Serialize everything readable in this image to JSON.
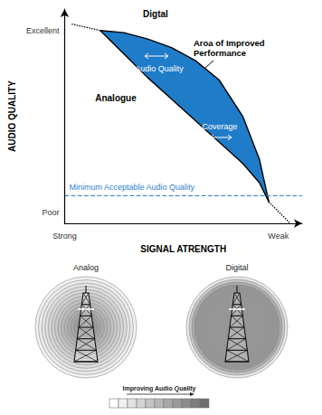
{
  "chart_data": {
    "type": "line",
    "x_label": "SIGNAL ATRENGTH",
    "y_label": "AUDIO QUALITY",
    "xlim": [
      0,
      10
    ],
    "ylim": [
      0,
      10
    ],
    "xticks": [
      {
        "value": 0,
        "label": "Strong"
      },
      {
        "value": 9,
        "label": "Weak"
      }
    ],
    "yticks": [
      {
        "value": 9,
        "label": "Excellent"
      },
      {
        "value": 0.5,
        "label": "Poor"
      }
    ],
    "grid": false,
    "series": [
      {
        "name": "Digtal",
        "color": "#000000",
        "line_style": "solid",
        "x": [
          1.5,
          2.5,
          3.5,
          4.5,
          5.5,
          6.5,
          7.5,
          8.2,
          8.6
        ],
        "values": [
          9.0,
          8.9,
          8.6,
          8.2,
          7.6,
          6.7,
          5.0,
          3.0,
          1.0
        ]
      },
      {
        "name": "Analogue",
        "color": "#000000",
        "line_style": "solid",
        "x": [
          1.5,
          2.5,
          3.5,
          4.5,
          5.5,
          6.5,
          7.5,
          8.2,
          8.6
        ],
        "values": [
          9.0,
          7.9,
          6.8,
          5.8,
          4.8,
          3.8,
          2.8,
          1.9,
          1.0
        ]
      },
      {
        "color": "#000000",
        "line_style": "dotted",
        "x": [
          0.3,
          1.5
        ],
        "values": [
          9.3,
          9.0
        ]
      },
      {
        "color": "#000000",
        "line_style": "dotted",
        "x": [
          8.6,
          9.5
        ],
        "values": [
          1.0,
          0.0
        ]
      }
    ],
    "fill_between": {
      "series": [
        "Digtal",
        "Analogue"
      ],
      "color": "#1f7cc8",
      "label": "Aroa of Improved Performance"
    },
    "threshold": {
      "value": 1.3,
      "label": "Minimum Acceptable Audio Quality",
      "color": "#2f7fd0",
      "line_style": "dashed"
    },
    "annotations": [
      "Audio Quality",
      "Coverage"
    ]
  },
  "diagram": {
    "panels": [
      {
        "label": "Analog"
      },
      {
        "label": "Digital"
      }
    ],
    "scale": {
      "label": "Improving Audio Quality"
    }
  }
}
